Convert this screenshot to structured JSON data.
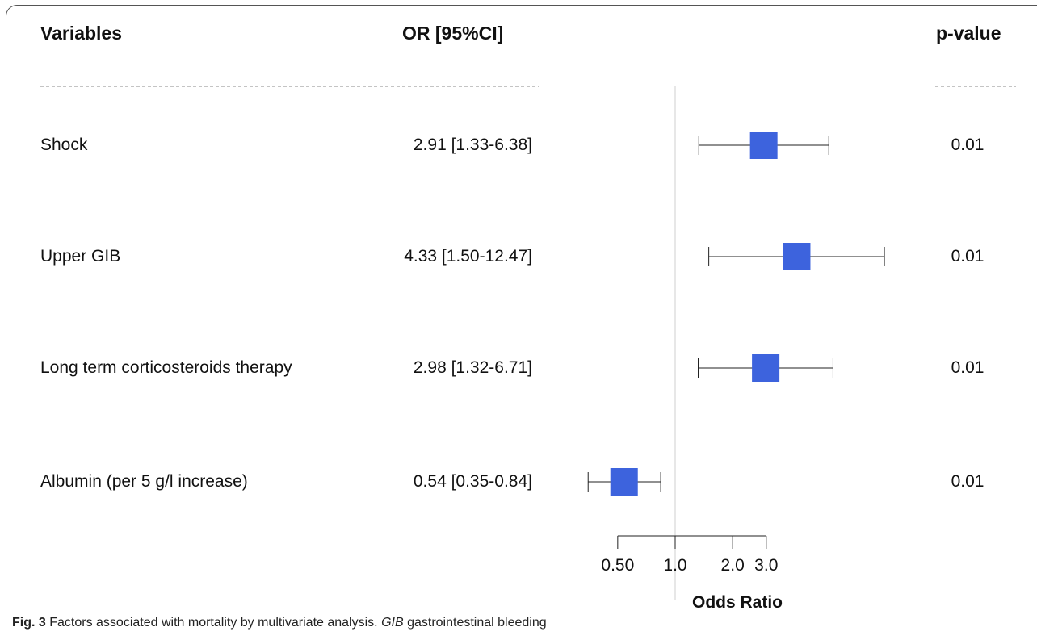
{
  "headers": {
    "variables": "Variables",
    "or_ci": "OR [95%CI]",
    "p_value": "p-value"
  },
  "chart_data": {
    "type": "forest",
    "xlabel": "Odds Ratio",
    "x_scale": "log",
    "reference_line": 1.0,
    "ticks": [
      0.5,
      1.0,
      2.0,
      3.0
    ],
    "tick_labels": [
      "0.50",
      "1.0",
      "2.0",
      "3.0"
    ],
    "marker_color": "#3d63dd",
    "rows": [
      {
        "variable": "Shock",
        "or_text": "2.91 [1.33-6.38]",
        "p_value": "0.01"
      },
      {
        "variable": "Upper GIB",
        "or_text": "4.33 [1.50-12.47]",
        "p_value": "0.01"
      },
      {
        "variable": "Long term corticosteroids therapy",
        "or_text": "2.98 [1.32-6.71]",
        "p_value": "0.01"
      },
      {
        "variable": "Albumin (per 5 g/l increase)",
        "or_text": "0.54 [0.35-0.84]",
        "p_value": "0.01"
      }
    ],
    "values": [
      {
        "or": 2.91,
        "lo": 1.33,
        "hi": 6.38
      },
      {
        "or": 4.33,
        "lo": 1.5,
        "hi": 12.47
      },
      {
        "or": 2.98,
        "lo": 1.32,
        "hi": 6.71
      },
      {
        "or": 0.54,
        "lo": 0.35,
        "hi": 0.84
      }
    ]
  },
  "caption": {
    "label": "Fig. 3",
    "text_before": "Factors associated with mortality by multivariate analysis.",
    "abbr": "GIB",
    "text_after": "gastrointestinal bleeding"
  }
}
